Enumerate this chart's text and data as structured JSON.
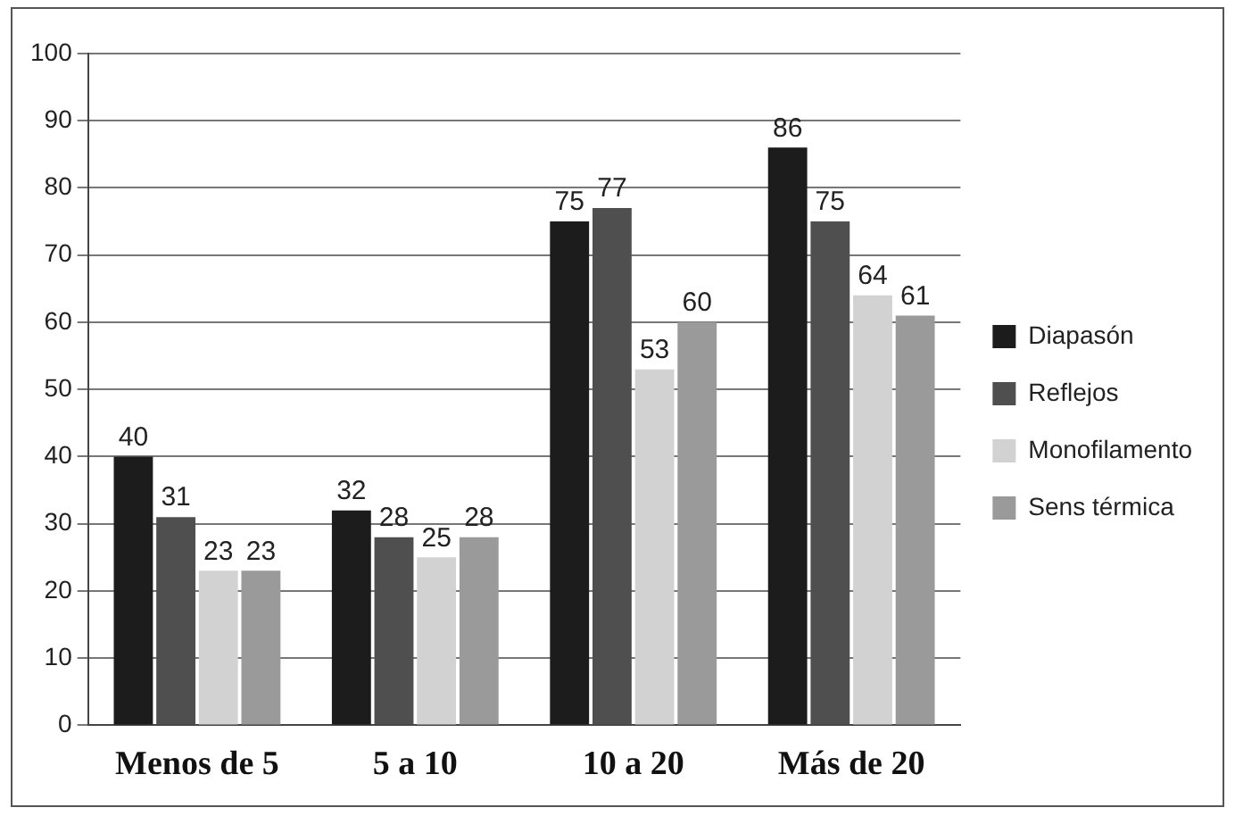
{
  "chart_data": {
    "type": "bar",
    "categories": [
      "Menos de 5",
      "5 a 10",
      "10 a 20",
      "Más de 20"
    ],
    "series": [
      {
        "name": "Diapasón",
        "color": "#1c1c1c",
        "values": [
          40,
          32,
          75,
          86
        ]
      },
      {
        "name": "Reflejos",
        "color": "#4f4f4f",
        "values": [
          31,
          28,
          77,
          75
        ]
      },
      {
        "name": "Monofilamento",
        "color": "#d2d2d2",
        "values": [
          23,
          25,
          53,
          64
        ]
      },
      {
        "name": "Sens térmica",
        "color": "#9a9a9a",
        "values": [
          23,
          28,
          60,
          61
        ]
      }
    ],
    "ylim": [
      0,
      100
    ],
    "yticks": [
      0,
      10,
      20,
      30,
      40,
      50,
      60,
      70,
      80,
      90,
      100
    ],
    "grid": "y",
    "legend": "right",
    "data_labels": true
  }
}
